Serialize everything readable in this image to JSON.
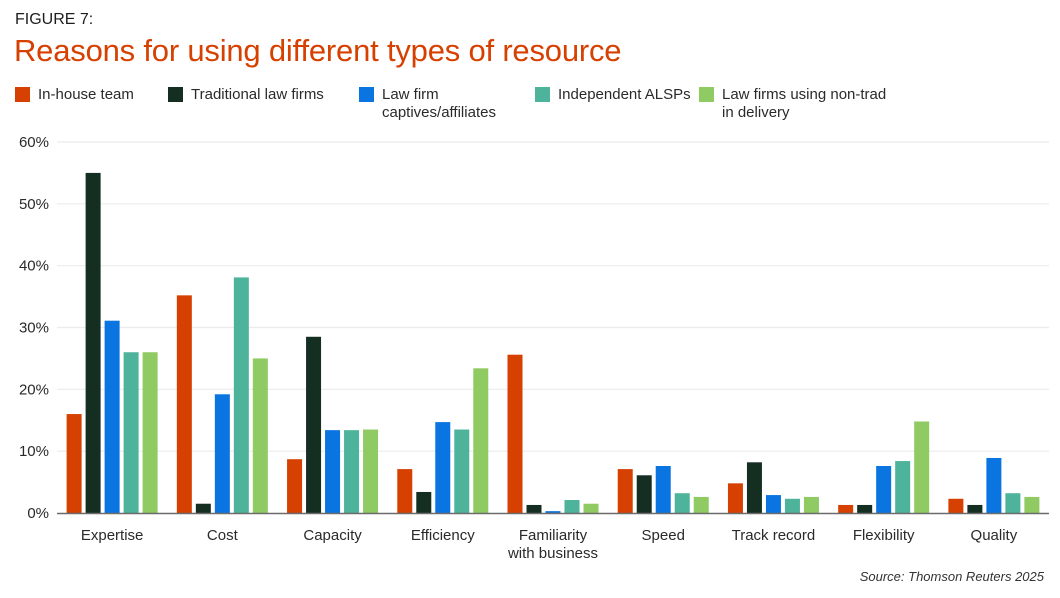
{
  "chart_data": {
    "type": "bar",
    "figure_label": "FIGURE 7:",
    "title": "Reasons for using different types of resource",
    "xlabel": "",
    "ylabel": "",
    "ylim": [
      0,
      60
    ],
    "yticks": [
      "0%",
      "10%",
      "20%",
      "30%",
      "40%",
      "50%",
      "60%"
    ],
    "ytick_values": [
      0,
      10,
      20,
      30,
      40,
      50,
      60
    ],
    "grid": true,
    "legend_position": "top-left",
    "categories": [
      "Expertise",
      "Cost",
      "Capacity",
      "Efficiency",
      "Familiarity\nwith business",
      "Speed",
      "Track record",
      "Flexibility",
      "Quality"
    ],
    "series": [
      {
        "name": "In-house team",
        "color": "#d64000",
        "values": [
          16,
          35.2,
          8.7,
          7.1,
          25.6,
          7.1,
          4.8,
          1.3,
          2.3
        ]
      },
      {
        "name": "Traditional law firms",
        "color": "#152e22",
        "values": [
          55,
          1.5,
          28.5,
          3.4,
          1.3,
          6.1,
          8.2,
          1.3,
          1.3
        ]
      },
      {
        "name": "Law firm\ncaptives/affiliates",
        "color": "#0a74e1",
        "values": [
          31.1,
          19.2,
          13.4,
          14.7,
          0.3,
          7.6,
          2.9,
          7.6,
          8.9
        ]
      },
      {
        "name": "Independent ALSPs",
        "color": "#4db39a",
        "values": [
          26,
          38.1,
          13.4,
          13.5,
          2.1,
          3.2,
          2.3,
          8.4,
          3.2
        ]
      },
      {
        "name": "Law firms using non-trad\nin delivery",
        "color": "#8fca62",
        "values": [
          26,
          25,
          13.5,
          23.4,
          1.5,
          2.6,
          2.6,
          14.8,
          2.6
        ]
      }
    ],
    "source": "Source: Thomson Reuters 2025"
  }
}
